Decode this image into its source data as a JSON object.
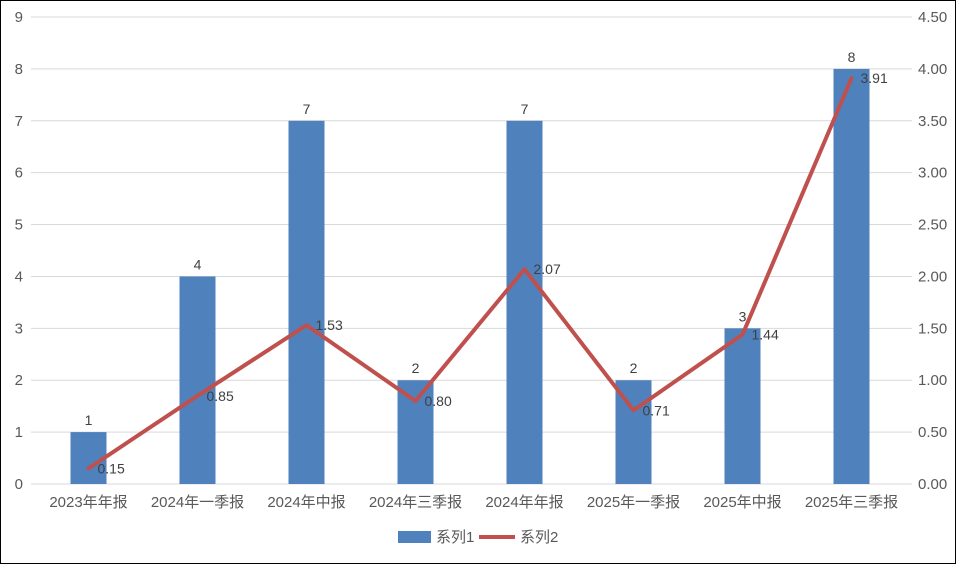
{
  "chart_data": {
    "type": "combo-bar-line",
    "title": "",
    "categories": [
      "2023年年报",
      "2024年一季报",
      "2024年中报",
      "2024年三季报",
      "2024年年报",
      "2025年一季报",
      "2025年中报",
      "2025年三季报"
    ],
    "series": [
      {
        "name": "系列1",
        "type": "bar",
        "axis": "left",
        "color": "#4F81BD",
        "values": [
          1,
          4,
          7,
          2,
          7,
          2,
          3,
          8
        ],
        "labels": [
          "1",
          "4",
          "7",
          "2",
          "7",
          "2",
          "3",
          "8"
        ]
      },
      {
        "name": "系列2",
        "type": "line",
        "axis": "right",
        "color": "#C0504D",
        "values": [
          0.15,
          0.85,
          1.53,
          0.8,
          2.07,
          0.71,
          1.44,
          3.91
        ],
        "labels": [
          "0.15",
          "0.85",
          "1.53",
          "0.80",
          "2.07",
          "0.71",
          "1.44",
          "3.91"
        ]
      }
    ],
    "left_axis": {
      "min": 0,
      "max": 9,
      "step": 1,
      "ticks": [
        "0",
        "1",
        "2",
        "3",
        "4",
        "5",
        "6",
        "7",
        "8",
        "9"
      ]
    },
    "right_axis": {
      "min": 0,
      "max": 4.5,
      "step": 0.5,
      "ticks": [
        "0.00",
        "0.50",
        "1.00",
        "1.50",
        "2.00",
        "2.50",
        "3.00",
        "3.50",
        "4.00",
        "4.50"
      ]
    },
    "grid": true,
    "legend_position": "bottom",
    "colors": {
      "grid_line": "#D9D9D9",
      "axis_text": "#595959",
      "data_label_text": "#404040",
      "background": "#ffffff",
      "border": "#000000"
    }
  }
}
